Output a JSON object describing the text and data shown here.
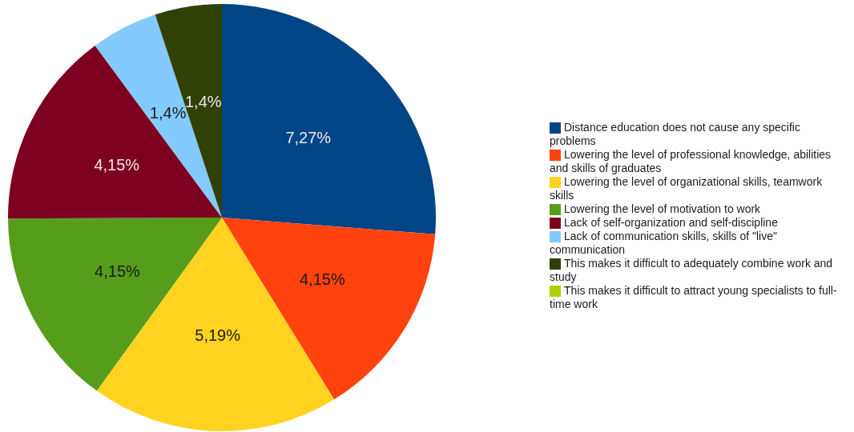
{
  "chart_data": {
    "type": "pie",
    "categories": [
      "Distance education does not cause any specific problems",
      "Lowering the level of professional knowledge, abilities and skills of graduates",
      "Lowering the level of organizational skills, teamwork skills",
      "Lowering the level of motivation to work",
      "Lack of self-organization and self-discipline",
      "Lack of communication skills, skills of \"live\" communication",
      "This makes it difficult to adequately combine work and study",
      "This makes it difficult to attract young specialists to full-time work"
    ],
    "values": [
      7.27,
      4.15,
      5.19,
      4.15,
      4.15,
      1.4,
      1.4,
      0
    ],
    "value_labels": [
      "7,27%",
      "4,15%",
      "5,19%",
      "4,15%",
      "4,15%",
      "1,4%",
      "1,4%",
      null
    ],
    "colors": [
      "#004586",
      "#ff420e",
      "#ffd320",
      "#579d1c",
      "#7e0021",
      "#83caff",
      "#314004",
      "#aecf00"
    ],
    "legend": "right"
  }
}
